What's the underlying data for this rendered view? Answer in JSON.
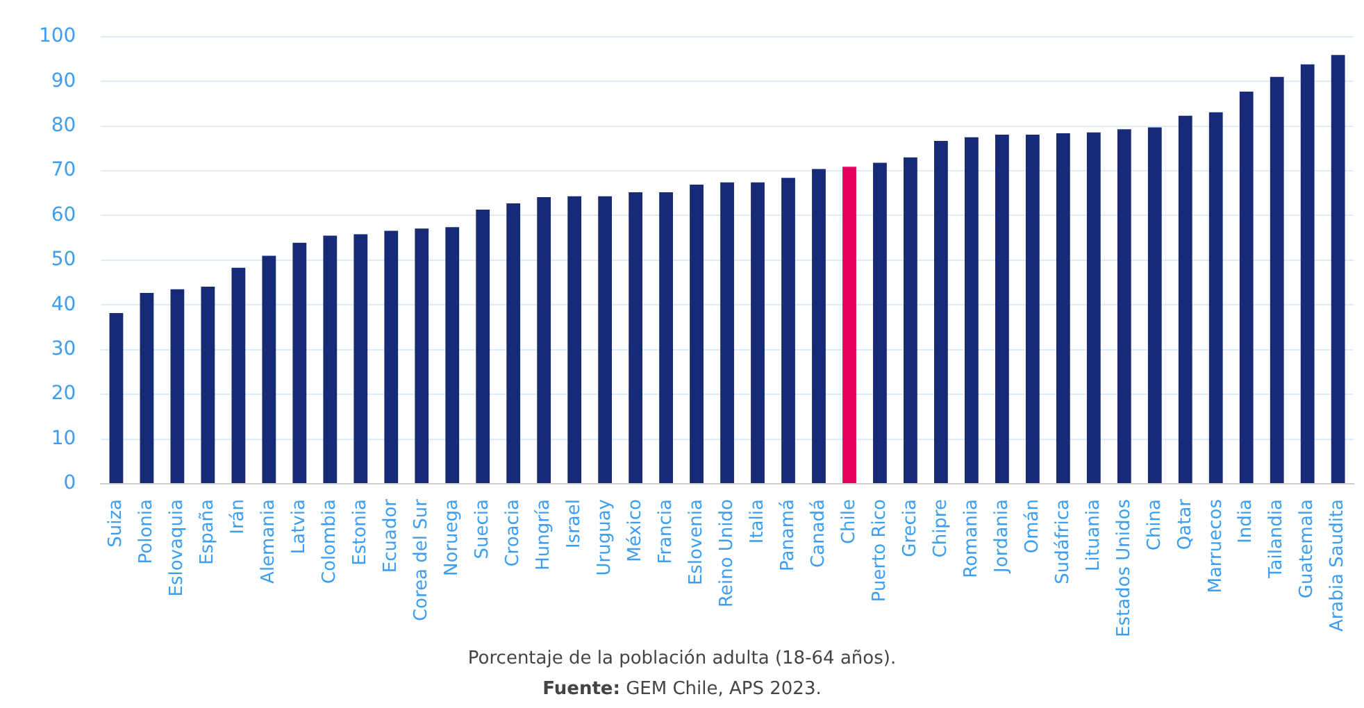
{
  "chart_data": {
    "type": "bar",
    "categories": [
      "Suiza",
      "Polonia",
      "Eslovaquia",
      "España",
      "Irán",
      "Alemania",
      "Latvia",
      "Colombia",
      "Estonia",
      "Ecuador",
      "Corea del Sur",
      "Noruega",
      "Suecia",
      "Croacia",
      "Hungría",
      "Israel",
      "Uruguay",
      "México",
      "Francia",
      "Eslovenia",
      "Reino Unido",
      "Italia",
      "Panamá",
      "Canadá",
      "Chile",
      "Puerto Rico",
      "Grecia",
      "Chipre",
      "Romania",
      "Jordania",
      "Omán",
      "Sudáfrica",
      "Lituania",
      "Estados Unidos",
      "China",
      "Qatar",
      "Marruecos",
      "India",
      "Tailandia",
      "Guatemala",
      "Arabia Saudita"
    ],
    "values": [
      38.2,
      42.7,
      43.5,
      44.1,
      48.3,
      51.0,
      53.9,
      55.5,
      55.8,
      56.6,
      57.1,
      57.4,
      61.3,
      62.7,
      64.1,
      64.3,
      64.3,
      65.2,
      65.2,
      66.9,
      67.4,
      67.4,
      68.4,
      70.4,
      70.9,
      71.8,
      73.0,
      76.7,
      77.5,
      78.1,
      78.1,
      78.4,
      78.6,
      79.3,
      79.7,
      82.3,
      83.1,
      87.7,
      91.0,
      93.8,
      95.9
    ],
    "colors": [
      "#172a78",
      "#172a78",
      "#172a78",
      "#172a78",
      "#172a78",
      "#172a78",
      "#172a78",
      "#172a78",
      "#172a78",
      "#172a78",
      "#172a78",
      "#172a78",
      "#172a78",
      "#172a78",
      "#172a78",
      "#172a78",
      "#172a78",
      "#172a78",
      "#172a78",
      "#172a78",
      "#172a78",
      "#172a78",
      "#172a78",
      "#172a78",
      "#e5005a",
      "#172a78",
      "#172a78",
      "#172a78",
      "#172a78",
      "#172a78",
      "#172a78",
      "#172a78",
      "#172a78",
      "#172a78",
      "#172a78",
      "#172a78",
      "#172a78",
      "#172a78",
      "#172a78",
      "#172a78",
      "#172a78"
    ],
    "ylim": [
      0,
      100
    ],
    "yticks": [
      0,
      10,
      20,
      30,
      40,
      50,
      60,
      70,
      80,
      90,
      100
    ],
    "grid": "y",
    "legend": false,
    "annotations": [
      "Porcentaje de la población adulta (18-64 años).",
      "Fuente: GEM Chile, APS 2023."
    ]
  }
}
